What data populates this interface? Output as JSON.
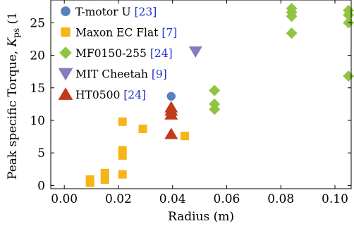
{
  "chart_data": {
    "type": "scatter",
    "xlabel": "Radius (m)",
    "ylabel": {
      "main": "Peak specific Torque, ",
      "symbol": "K",
      "subscript": "ps",
      "unit": " (1"
    },
    "xlim": [
      -0.005,
      0.106
    ],
    "ylim": [
      -0.5,
      28.5
    ],
    "xticks": [
      0.0,
      0.02,
      0.04,
      0.06,
      0.08,
      0.1
    ],
    "xtick_labels": [
      "0.00",
      "0.02",
      "0.04",
      "0.06",
      "0.08",
      "0.10"
    ],
    "yticks": [
      0,
      5,
      10,
      15,
      20,
      25
    ],
    "ytick_labels": [
      "0",
      "5",
      "10",
      "15",
      "20",
      "25"
    ],
    "grid": false,
    "legend_position": "top-left",
    "series": [
      {
        "name": "T-motor U",
        "ref": "[23]",
        "marker": "circle",
        "color": "#5b7fbf",
        "points": [
          [
            0.0395,
            13.7
          ]
        ]
      },
      {
        "name": "Maxon EC Flat",
        "ref": "[7]",
        "marker": "square",
        "color": "#f7b417",
        "points": [
          [
            0.0095,
            0.4
          ],
          [
            0.0095,
            0.9
          ],
          [
            0.015,
            0.9
          ],
          [
            0.015,
            1.9
          ],
          [
            0.0215,
            1.7
          ],
          [
            0.0215,
            4.6
          ],
          [
            0.0215,
            5.4
          ],
          [
            0.0215,
            9.8
          ],
          [
            0.029,
            8.7
          ],
          [
            0.0445,
            7.6
          ]
        ]
      },
      {
        "name": "MF0150-255",
        "ref": "[24]",
        "marker": "diamond",
        "color": "#8fc540",
        "points": [
          [
            0.0555,
            11.7
          ],
          [
            0.0555,
            12.5
          ],
          [
            0.0555,
            14.6
          ],
          [
            0.084,
            23.4
          ],
          [
            0.084,
            26.0
          ],
          [
            0.084,
            26.6
          ],
          [
            0.084,
            27.2
          ],
          [
            0.105,
            16.8
          ],
          [
            0.105,
            25.0
          ],
          [
            0.105,
            26.2
          ],
          [
            0.105,
            26.9
          ]
        ]
      },
      {
        "name": "MIT Cheetah",
        "ref": "[9]",
        "marker": "triangle-down",
        "color": "#8a78c0",
        "points": [
          [
            0.0485,
            20.6
          ]
        ]
      },
      {
        "name": "HT0500",
        "ref": "[24]",
        "marker": "triangle-up",
        "color": "#c23a1c",
        "points": [
          [
            0.0395,
            7.9
          ],
          [
            0.0395,
            10.9
          ],
          [
            0.0395,
            11.5
          ],
          [
            0.0395,
            12.0
          ]
        ]
      }
    ]
  }
}
